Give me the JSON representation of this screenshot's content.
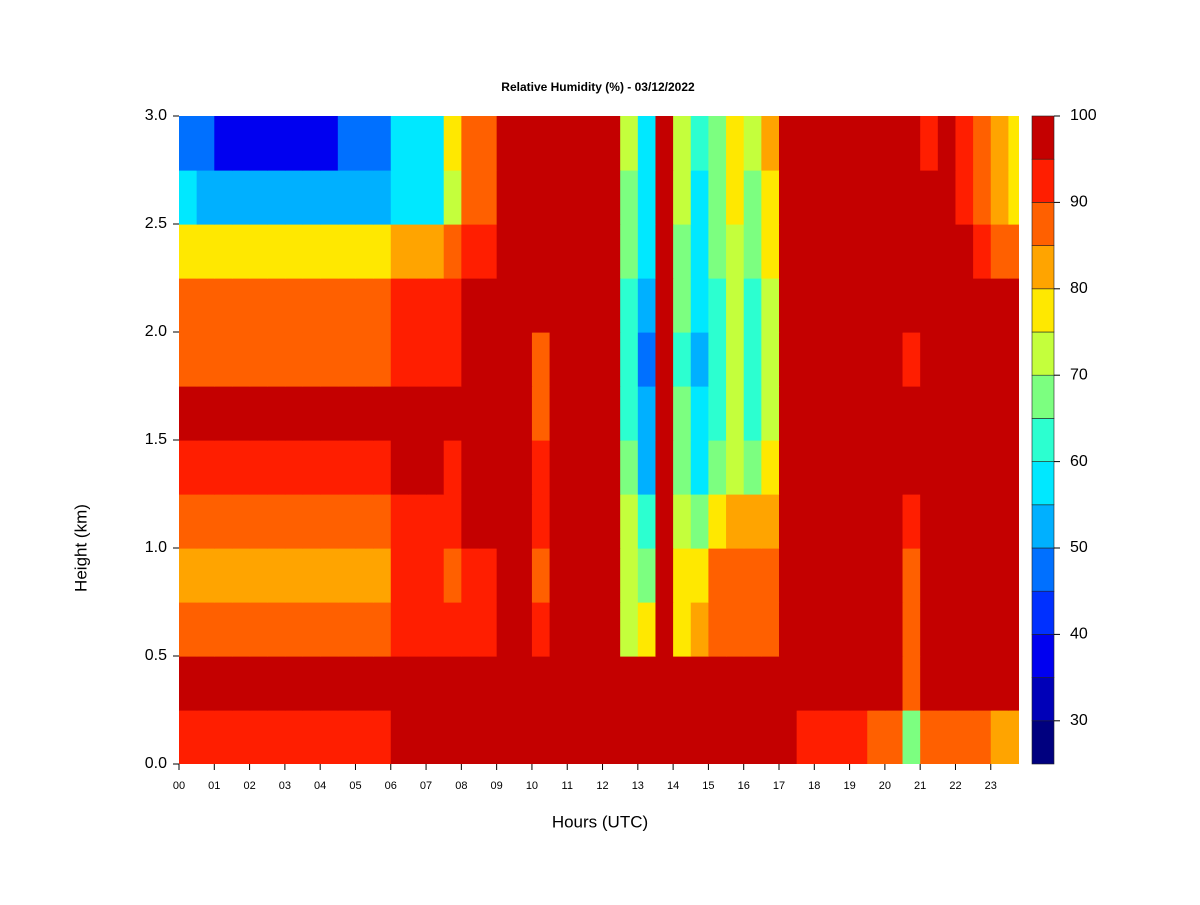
{
  "chart_data": {
    "type": "heatmap",
    "title": "Relative Humidity (%) - 03/12/2022",
    "x_label": "Hours (UTC)",
    "y_label": "Height (km)",
    "xlim": [
      0,
      23.8
    ],
    "ylim": [
      0,
      3
    ],
    "xticks": [
      {
        "value": 0,
        "label": "00"
      },
      {
        "value": 1,
        "label": "01"
      },
      {
        "value": 2,
        "label": "02"
      },
      {
        "value": 3,
        "label": "03"
      },
      {
        "value": 4,
        "label": "04"
      },
      {
        "value": 5,
        "label": "05"
      },
      {
        "value": 6,
        "label": "06"
      },
      {
        "value": 7,
        "label": "07"
      },
      {
        "value": 8,
        "label": "08"
      },
      {
        "value": 9,
        "label": "09"
      },
      {
        "value": 10,
        "label": "10"
      },
      {
        "value": 11,
        "label": "11"
      },
      {
        "value": 12,
        "label": "12"
      },
      {
        "value": 13,
        "label": "13"
      },
      {
        "value": 14,
        "label": "14"
      },
      {
        "value": 15,
        "label": "15"
      },
      {
        "value": 16,
        "label": "16"
      },
      {
        "value": 17,
        "label": "17"
      },
      {
        "value": 18,
        "label": "18"
      },
      {
        "value": 19,
        "label": "19"
      },
      {
        "value": 20,
        "label": "20"
      },
      {
        "value": 21,
        "label": "21"
      },
      {
        "value": 22,
        "label": "22"
      },
      {
        "value": 23,
        "label": "23"
      }
    ],
    "yticks": [
      {
        "value": 0,
        "label": "0.0"
      },
      0.5,
      {
        "value": 1,
        "label": "1.0"
      },
      1.5,
      {
        "value": 2,
        "label": "2.0"
      },
      2.5,
      {
        "value": 3,
        "label": "3.0"
      }
    ],
    "x_bins": [
      0,
      0.5,
      1,
      1.5,
      2,
      2.5,
      3,
      3.5,
      4,
      4.5,
      5,
      5.5,
      6,
      6.5,
      7,
      7.5,
      8,
      8.5,
      9,
      9.5,
      10,
      10.5,
      11,
      11.5,
      12,
      12.5,
      13,
      13.5,
      14,
      14.5,
      15,
      15.5,
      16,
      16.5,
      17,
      17.5,
      18,
      18.5,
      19,
      19.5,
      20,
      20.5,
      21,
      21.5,
      22,
      22.5,
      23,
      23.5,
      24
    ],
    "y_bins": [
      0,
      0.25,
      0.5,
      0.75,
      1,
      1.25,
      1.5,
      1.75,
      2,
      2.25,
      2.5,
      2.75,
      3
    ],
    "z": [
      [
        94,
        94,
        94,
        94,
        94,
        94,
        94,
        94,
        94,
        94,
        94,
        94,
        95,
        95,
        95,
        96,
        96,
        96,
        97,
        97,
        97,
        97,
        97,
        97,
        97,
        98,
        98,
        98,
        98,
        98,
        98,
        98,
        98,
        98,
        98,
        92,
        92,
        90,
        90,
        88,
        85,
        68,
        85,
        88,
        88,
        86,
        84,
        80
      ],
      [
        96,
        96,
        96,
        96,
        96,
        96,
        96,
        96,
        96,
        96,
        96,
        96,
        98,
        98,
        98,
        98,
        98,
        98,
        98,
        98,
        98,
        98,
        98,
        98,
        98,
        97,
        97,
        97,
        97,
        97,
        97,
        97,
        97,
        97,
        98,
        98,
        98,
        98,
        98,
        98,
        98,
        88,
        98,
        98,
        98,
        98,
        98,
        98
      ],
      [
        86,
        86,
        86,
        86,
        86,
        86,
        86,
        86,
        86,
        86,
        86,
        86,
        93,
        93,
        93,
        90,
        92,
        92,
        98,
        98,
        90,
        98,
        98,
        98,
        98,
        72,
        75,
        97,
        78,
        82,
        85,
        85,
        85,
        85,
        98,
        98,
        98,
        98,
        98,
        98,
        98,
        85,
        98,
        98,
        98,
        98,
        98,
        98
      ],
      [
        84,
        84,
        84,
        84,
        84,
        84,
        84,
        84,
        84,
        84,
        84,
        84,
        92,
        92,
        92,
        88,
        90,
        90,
        98,
        98,
        88,
        98,
        98,
        98,
        98,
        70,
        68,
        96,
        75,
        78,
        88,
        88,
        88,
        88,
        98,
        98,
        98,
        98,
        98,
        98,
        98,
        88,
        98,
        98,
        98,
        98,
        98,
        98
      ],
      [
        85,
        85,
        85,
        85,
        85,
        85,
        85,
        85,
        85,
        85,
        85,
        85,
        94,
        94,
        94,
        90,
        95,
        95,
        98,
        98,
        90,
        98,
        98,
        98,
        98,
        70,
        60,
        96,
        72,
        68,
        75,
        80,
        80,
        82,
        98,
        98,
        98,
        98,
        98,
        98,
        98,
        92,
        98,
        98,
        98,
        98,
        98,
        98
      ],
      [
        90,
        90,
        90,
        90,
        90,
        90,
        90,
        90,
        90,
        90,
        90,
        90,
        96,
        96,
        96,
        94,
        96,
        96,
        98,
        98,
        90,
        98,
        98,
        98,
        98,
        65,
        52,
        96,
        68,
        58,
        65,
        72,
        68,
        75,
        98,
        98,
        98,
        98,
        98,
        98,
        98,
        98,
        98,
        98,
        98,
        98,
        98,
        98
      ],
      [
        95,
        95,
        95,
        95,
        95,
        95,
        95,
        95,
        95,
        95,
        95,
        95,
        97,
        97,
        97,
        96,
        96,
        96,
        98,
        98,
        88,
        98,
        98,
        98,
        98,
        62,
        50,
        95,
        65,
        55,
        62,
        70,
        62,
        72,
        98,
        98,
        98,
        98,
        98,
        98,
        98,
        98,
        98,
        98,
        98,
        98,
        98,
        98
      ],
      [
        88,
        88,
        88,
        88,
        88,
        88,
        88,
        88,
        88,
        88,
        88,
        88,
        94,
        94,
        94,
        92,
        96,
        96,
        98,
        98,
        85,
        98,
        98,
        98,
        98,
        60,
        48,
        95,
        62,
        50,
        60,
        70,
        60,
        70,
        97,
        97,
        97,
        97,
        97,
        97,
        97,
        93,
        98,
        98,
        98,
        98,
        98,
        98
      ],
      [
        86,
        86,
        86,
        86,
        86,
        86,
        86,
        86,
        86,
        86,
        86,
        86,
        92,
        92,
        92,
        90,
        95,
        95,
        98,
        98,
        98,
        98,
        98,
        98,
        98,
        62,
        52,
        96,
        65,
        55,
        62,
        70,
        62,
        72,
        98,
        98,
        98,
        98,
        98,
        98,
        98,
        98,
        98,
        98,
        98,
        98,
        98,
        98
      ],
      [
        75,
        75,
        75,
        75,
        75,
        75,
        75,
        75,
        75,
        75,
        75,
        75,
        80,
        80,
        80,
        88,
        94,
        94,
        98,
        98,
        98,
        98,
        98,
        98,
        98,
        65,
        55,
        96,
        68,
        58,
        65,
        72,
        65,
        75,
        98,
        98,
        98,
        98,
        98,
        98,
        98,
        98,
        98,
        98,
        98,
        90,
        88,
        85
      ],
      [
        55,
        50,
        50,
        50,
        50,
        50,
        50,
        50,
        50,
        50,
        52,
        52,
        58,
        58,
        58,
        72,
        88,
        88,
        98,
        98,
        98,
        98,
        98,
        98,
        98,
        68,
        55,
        96,
        70,
        58,
        65,
        75,
        68,
        78,
        98,
        98,
        98,
        98,
        98,
        98,
        98,
        98,
        98,
        98,
        92,
        85,
        80,
        78
      ],
      [
        45,
        45,
        38,
        38,
        38,
        38,
        38,
        38,
        38,
        45,
        45,
        45,
        55,
        55,
        55,
        78,
        88,
        88,
        98,
        98,
        98,
        98,
        98,
        98,
        98,
        70,
        58,
        96,
        72,
        60,
        68,
        75,
        70,
        80,
        98,
        98,
        98,
        98,
        98,
        98,
        98,
        98,
        94,
        96,
        90,
        85,
        80,
        78
      ]
    ],
    "colorbar": {
      "levels": [
        25,
        30,
        35,
        40,
        45,
        50,
        55,
        60,
        65,
        70,
        75,
        80,
        85,
        90,
        95,
        100
      ],
      "colors": [
        "#00007f",
        "#0000b8",
        "#0000f0",
        "#0030ff",
        "#0070ff",
        "#00b0ff",
        "#00e8ff",
        "#2cffd0",
        "#7cff80",
        "#c4ff3c",
        "#ffe800",
        "#ffa400",
        "#ff6000",
        "#ff1e00",
        "#c40000",
        "#800000"
      ],
      "ticks": [
        30,
        40,
        50,
        60,
        70,
        80,
        90,
        100
      ]
    }
  }
}
